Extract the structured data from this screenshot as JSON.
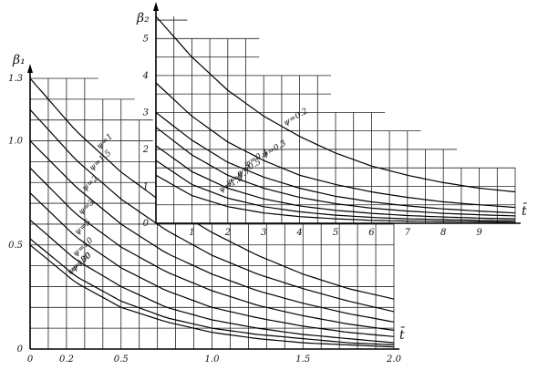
{
  "chart_data": [
    {
      "type": "line",
      "ylabel": "β₁",
      "xlabel": "t̄",
      "xlim": [
        0,
        2.0
      ],
      "ylim": [
        0,
        1.3
      ],
      "x_ticks": [
        "0",
        "0.2",
        "0.5",
        "1.0",
        "1.5",
        "2.0"
      ],
      "y_ticks": [
        "0",
        "0.5",
        "1.0",
        "1.3"
      ],
      "grid": true,
      "series": [
        {
          "name": "ψ=1",
          "x": [
            0,
            0.25,
            0.5,
            0.75,
            1.0,
            1.25,
            1.5,
            1.75,
            2.0
          ],
          "y": [
            1.3,
            1.05,
            0.85,
            0.69,
            0.56,
            0.45,
            0.36,
            0.29,
            0.24
          ]
        },
        {
          "name": "ψ=1.5",
          "x": [
            0,
            0.25,
            0.5,
            0.75,
            1.0,
            1.25,
            1.5,
            1.75,
            2.0
          ],
          "y": [
            1.15,
            0.91,
            0.72,
            0.57,
            0.45,
            0.36,
            0.29,
            0.23,
            0.18
          ]
        },
        {
          "name": "ψ=2",
          "x": [
            0,
            0.25,
            0.5,
            0.75,
            1.0,
            1.25,
            1.5,
            1.75,
            2.0
          ],
          "y": [
            1.0,
            0.78,
            0.6,
            0.46,
            0.36,
            0.28,
            0.22,
            0.17,
            0.13
          ]
        },
        {
          "name": "ψ=3",
          "x": [
            0,
            0.25,
            0.5,
            0.75,
            1.0,
            1.25,
            1.5,
            1.75,
            2.0
          ],
          "y": [
            0.87,
            0.65,
            0.49,
            0.37,
            0.28,
            0.21,
            0.16,
            0.12,
            0.09
          ]
        },
        {
          "name": "ψ=5",
          "x": [
            0,
            0.25,
            0.5,
            0.75,
            1.0,
            1.25,
            1.5,
            1.75,
            2.0
          ],
          "y": [
            0.75,
            0.54,
            0.39,
            0.28,
            0.2,
            0.15,
            0.11,
            0.08,
            0.06
          ]
        },
        {
          "name": "ψ=10",
          "x": [
            0,
            0.25,
            0.5,
            0.75,
            1.0,
            1.25,
            1.5,
            1.75,
            2.0
          ],
          "y": [
            0.62,
            0.43,
            0.3,
            0.2,
            0.14,
            0.1,
            0.07,
            0.05,
            0.03
          ]
        },
        {
          "name": "ψ=30",
          "x": [
            0,
            0.25,
            0.5,
            0.75,
            1.0,
            1.25,
            1.5,
            1.75,
            2.0
          ],
          "y": [
            0.53,
            0.35,
            0.23,
            0.15,
            0.1,
            0.07,
            0.05,
            0.03,
            0.02
          ]
        },
        {
          "name": "ψ=100",
          "x": [
            0,
            0.25,
            0.5,
            0.75,
            1.0,
            1.25,
            1.5,
            1.75,
            2.0
          ],
          "y": [
            0.5,
            0.32,
            0.2,
            0.13,
            0.08,
            0.05,
            0.03,
            0.02,
            0.01
          ]
        }
      ]
    },
    {
      "type": "line",
      "ylabel": "β₂",
      "xlabel": "t̄",
      "xlim": [
        0,
        10
      ],
      "ylim": [
        0,
        5.6
      ],
      "x_ticks": [
        "1",
        "2",
        "3",
        "4",
        "5",
        "6",
        "7",
        "8",
        "9"
      ],
      "y_ticks": [
        "0",
        "1",
        "2",
        "3",
        "4",
        "5"
      ],
      "grid": true,
      "series": [
        {
          "name": "ψ=0.2",
          "x": [
            0,
            1,
            2,
            3,
            4,
            5,
            6,
            7,
            8,
            9,
            10
          ],
          "y": [
            5.6,
            4.5,
            3.6,
            2.9,
            2.35,
            1.9,
            1.55,
            1.3,
            1.1,
            0.95,
            0.85
          ]
        },
        {
          "name": "ψ=0.3",
          "x": [
            0,
            1,
            2,
            3,
            4,
            5,
            6,
            7,
            8,
            9,
            10
          ],
          "y": [
            3.8,
            2.9,
            2.2,
            1.7,
            1.3,
            1.05,
            0.85,
            0.7,
            0.58,
            0.5,
            0.43
          ]
        },
        {
          "name": "ψ=0.4",
          "x": [
            0,
            1,
            2,
            3,
            4,
            5,
            6,
            7,
            8,
            9,
            10
          ],
          "y": [
            3.0,
            2.25,
            1.65,
            1.25,
            0.95,
            0.73,
            0.58,
            0.47,
            0.39,
            0.33,
            0.28
          ]
        },
        {
          "name": "ψ=0.5",
          "x": [
            0,
            1,
            2,
            3,
            4,
            5,
            6,
            7,
            8,
            9,
            10
          ],
          "y": [
            2.6,
            1.85,
            1.3,
            0.95,
            0.7,
            0.53,
            0.41,
            0.33,
            0.27,
            0.23,
            0.2
          ]
        },
        {
          "name": "ψ=0.7",
          "x": [
            0,
            1,
            2,
            3,
            4,
            5,
            6,
            7,
            8,
            9,
            10
          ],
          "y": [
            2.1,
            1.4,
            0.95,
            0.66,
            0.47,
            0.35,
            0.27,
            0.21,
            0.17,
            0.14,
            0.12
          ]
        },
        {
          "name": "ψ=1.0",
          "x": [
            0,
            1,
            2,
            3,
            4,
            5,
            6,
            7,
            8,
            9,
            10
          ],
          "y": [
            1.7,
            1.05,
            0.68,
            0.45,
            0.31,
            0.22,
            0.16,
            0.12,
            0.1,
            0.08,
            0.07
          ]
        },
        {
          "name": "",
          "x": [
            0,
            1,
            2,
            3,
            4,
            5,
            6,
            7,
            8,
            9,
            10
          ],
          "y": [
            1.3,
            0.75,
            0.45,
            0.28,
            0.18,
            0.12,
            0.08,
            0.06,
            0.05,
            0.04,
            0.03
          ]
        }
      ]
    }
  ]
}
